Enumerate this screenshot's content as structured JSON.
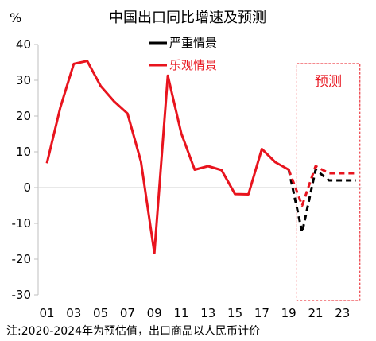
{
  "chart_data": {
    "type": "line",
    "title": "中国出口同比增速及预测",
    "ylabel": "%",
    "xlabel": "",
    "note": "注:2020-2024年为预估值，出口商品以人民币计价",
    "forecast_label": "预测",
    "ylim": [
      -30,
      40
    ],
    "yticks": [
      40,
      30,
      20,
      10,
      0,
      -10,
      -20,
      -30
    ],
    "x_range": [
      2001,
      2024
    ],
    "xtick_values": [
      2001,
      2003,
      2005,
      2007,
      2009,
      2011,
      2013,
      2015,
      2017,
      2019,
      2021,
      2023
    ],
    "xtick_labels": [
      "01",
      "03",
      "05",
      "07",
      "09",
      "11",
      "13",
      "15",
      "17",
      "19",
      "21",
      "23"
    ],
    "forecast_range": [
      2019.6,
      2024.3
    ],
    "grid": false,
    "legend_position": "top-right",
    "series": [
      {
        "name": "严重情景",
        "color": "#000000",
        "style": "dashed",
        "x": [
          2019,
          2020,
          2021,
          2022,
          2023,
          2024
        ],
        "values": [
          5.0,
          -12.5,
          5.0,
          2.0,
          2.0,
          2.0
        ]
      },
      {
        "name": "乐观情景",
        "color": "#e8141e",
        "style": "solid",
        "x": [
          2001,
          2002,
          2003,
          2004,
          2005,
          2006,
          2007,
          2008,
          2009,
          2010,
          2011,
          2012,
          2013,
          2014,
          2015,
          2016,
          2017,
          2018,
          2019
        ],
        "values": [
          6.8,
          22.4,
          34.6,
          35.4,
          28.4,
          24.1,
          20.7,
          7.3,
          -18.3,
          31.3,
          15.2,
          5.0,
          6.0,
          4.9,
          -1.8,
          -1.9,
          10.8,
          7.1,
          5.0
        ]
      },
      {
        "name": "乐观情景",
        "color": "#e8141e",
        "style": "dashed",
        "x": [
          2019,
          2020,
          2021,
          2022,
          2023,
          2024
        ],
        "values": [
          5.0,
          -5.0,
          6.0,
          4.0,
          4.0,
          4.0
        ]
      }
    ],
    "legend": [
      {
        "label": "严重情景",
        "color": "#000000"
      },
      {
        "label": "乐观情景",
        "color": "#e8141e"
      }
    ]
  }
}
